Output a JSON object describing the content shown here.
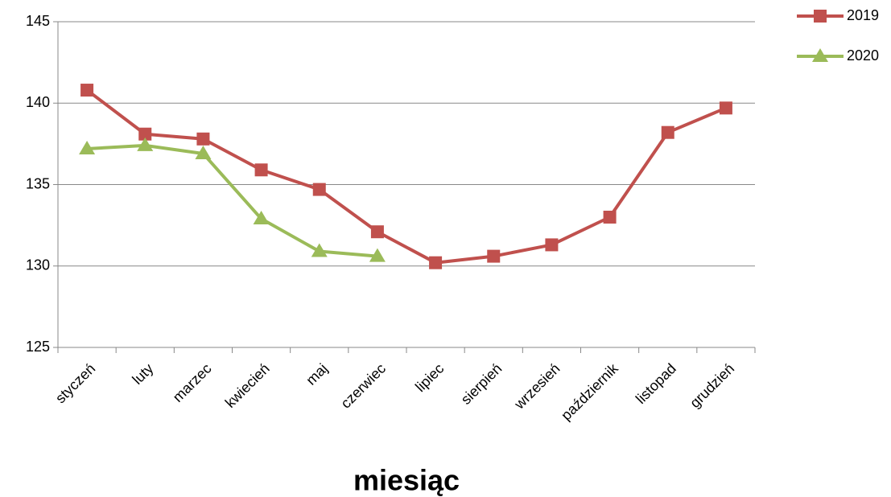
{
  "chart_data": {
    "type": "line",
    "categories": [
      "styczeń",
      "luty",
      "marzec",
      "kwiecień",
      "maj",
      "czerwiec",
      "lipiec",
      "sierpień",
      "wrzesień",
      "październik",
      "listopad",
      "grudzień"
    ],
    "series": [
      {
        "name": "2019",
        "color": "#c0504d",
        "marker": "square",
        "values": [
          140.8,
          138.1,
          137.8,
          135.9,
          134.7,
          132.1,
          130.2,
          130.6,
          131.3,
          133.0,
          138.2,
          139.7
        ]
      },
      {
        "name": "2020",
        "color": "#9bbb59",
        "marker": "triangle",
        "values": [
          137.2,
          137.4,
          136.9,
          132.9,
          130.9,
          130.6,
          null,
          null,
          null,
          null,
          null,
          null
        ]
      }
    ],
    "x_label": "miesiąc",
    "ylim": [
      125,
      145
    ],
    "yticks": [
      125,
      130,
      135,
      140,
      145
    ],
    "grid": true,
    "legend": "top-right"
  }
}
